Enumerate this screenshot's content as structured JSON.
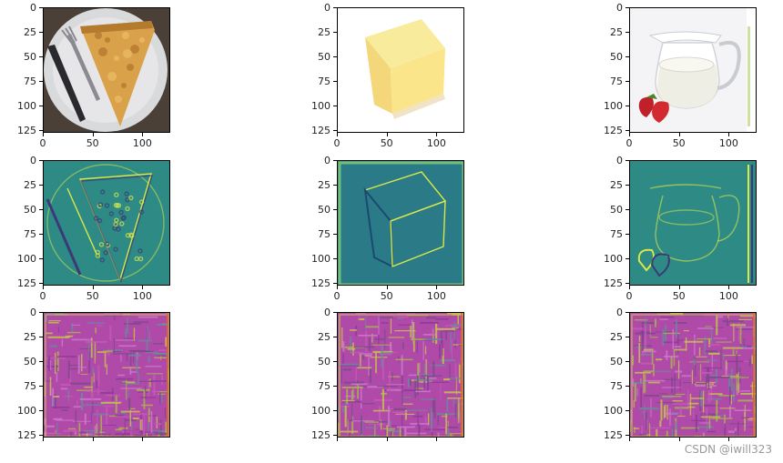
{
  "axes": {
    "y_ticks": [
      "0",
      "25",
      "50",
      "75",
      "100",
      "125"
    ],
    "x_ticks": [
      "0",
      "50",
      "100"
    ]
  },
  "grid": {
    "rows": 3,
    "cols": 3,
    "panels": [
      {
        "row": 0,
        "col": 0,
        "subject": "pizza-slice-photo"
      },
      {
        "row": 0,
        "col": 1,
        "subject": "butter-block-photo"
      },
      {
        "row": 0,
        "col": 2,
        "subject": "milk-jug-strawberries-photo"
      },
      {
        "row": 1,
        "col": 0,
        "subject": "pizza-edge-feature-map"
      },
      {
        "row": 1,
        "col": 1,
        "subject": "butter-edge-feature-map"
      },
      {
        "row": 1,
        "col": 2,
        "subject": "milk-edge-feature-map"
      },
      {
        "row": 2,
        "col": 0,
        "subject": "pizza-deep-feature-map"
      },
      {
        "row": 2,
        "col": 1,
        "subject": "butter-deep-feature-map"
      },
      {
        "row": 2,
        "col": 2,
        "subject": "milk-deep-feature-map"
      }
    ]
  },
  "colors": {
    "feature_map_base": "#2a8c86",
    "feature_map_highlight": "#d8e84a",
    "deep_map_base": "#b04aa8",
    "deep_map_accent": "#c8c84a"
  },
  "watermark": "CSDN @iwill323"
}
